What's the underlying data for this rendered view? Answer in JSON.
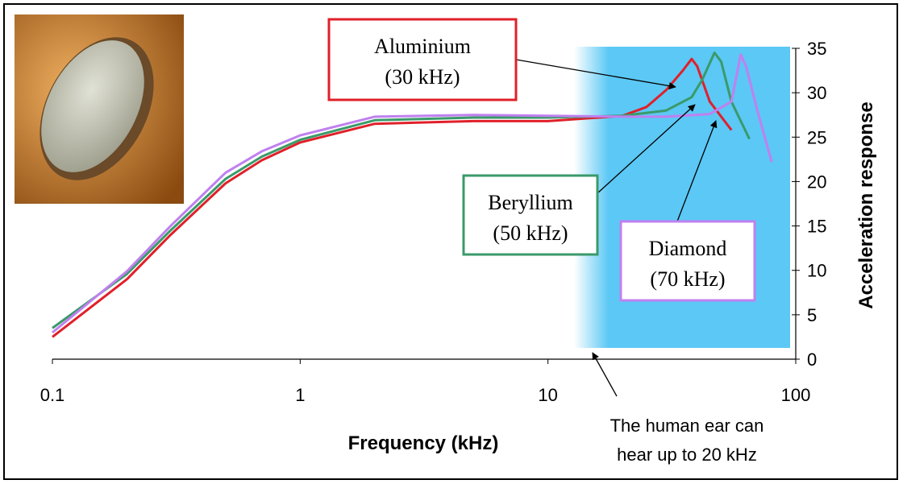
{
  "chart_data": {
    "type": "line",
    "xlabel": "Frequency (kHz)",
    "ylabel": "Acceleration response",
    "xscale": "log",
    "xlim": [
      0.1,
      100
    ],
    "xticks": [
      0.1,
      1,
      10,
      100
    ],
    "ylim": [
      0,
      35
    ],
    "yticks": [
      0,
      5,
      10,
      15,
      20,
      25,
      30,
      35
    ],
    "series": [
      {
        "name": "Aluminium",
        "note": "(30 kHz)",
        "color": "#e0202a",
        "x": [
          0.1,
          0.2,
          0.3,
          0.5,
          0.7,
          1,
          2,
          5,
          10,
          20,
          25,
          30,
          35,
          38,
          40,
          45,
          55
        ],
        "values": [
          2.5,
          9,
          14,
          19.8,
          22.4,
          24.4,
          26.5,
          26.8,
          26.8,
          27.4,
          28.4,
          30.3,
          32.5,
          33.8,
          33,
          29,
          25.8
        ]
      },
      {
        "name": "Beryllium",
        "note": "(50 kHz)",
        "color": "#3a9a6a",
        "x": [
          0.1,
          0.2,
          0.3,
          0.5,
          0.7,
          1,
          2,
          5,
          10,
          20,
          30,
          38,
          42,
          47,
          50,
          55,
          65
        ],
        "values": [
          3.5,
          9.6,
          14.5,
          20.3,
          22.8,
          24.7,
          26.9,
          27.2,
          27.2,
          27.4,
          28,
          29.5,
          31.5,
          34.5,
          33.5,
          29,
          24.8
        ]
      },
      {
        "name": "Diamond",
        "note": "(70 kHz)",
        "color": "#c080f0",
        "x": [
          0.1,
          0.2,
          0.3,
          0.5,
          0.7,
          1,
          2,
          5,
          10,
          20,
          30,
          45,
          55,
          60,
          63,
          70,
          80
        ],
        "values": [
          3,
          9.9,
          15,
          21,
          23.4,
          25.2,
          27.3,
          27.5,
          27.4,
          27.3,
          27.3,
          27.6,
          29,
          34.3,
          33,
          28,
          22.2
        ]
      }
    ],
    "annotations": [
      {
        "text": [
          "The human ear can",
          "hear up to 20 kHz"
        ]
      }
    ]
  }
}
